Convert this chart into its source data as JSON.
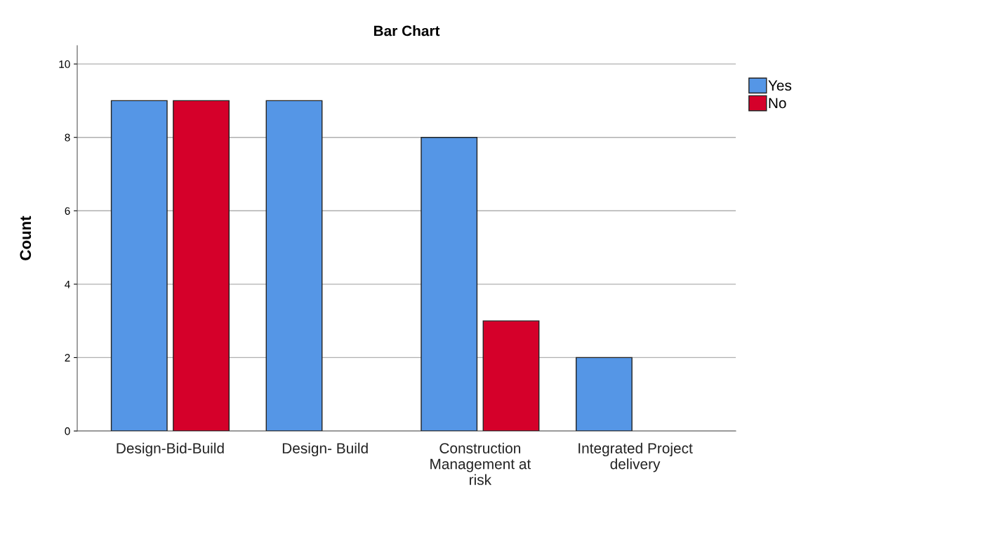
{
  "chart_data": {
    "type": "bar",
    "title": "Bar Chart",
    "ylabel": "Count",
    "categories": [
      "Design-Bid-Build",
      "Design- Build",
      "Construction\nManagement at\nrisk",
      "Integrated Project\ndelivery"
    ],
    "series": [
      {
        "name": "Yes",
        "color": "#5596e6",
        "values": [
          9,
          9,
          8,
          2
        ]
      },
      {
        "name": "No",
        "color": "#d5002a",
        "values": [
          9,
          null,
          3,
          null
        ]
      }
    ],
    "ylim": [
      0,
      10.5
    ],
    "yticks": [
      0,
      2,
      4,
      6,
      8,
      10
    ],
    "grid": "y",
    "legend": "top right"
  }
}
